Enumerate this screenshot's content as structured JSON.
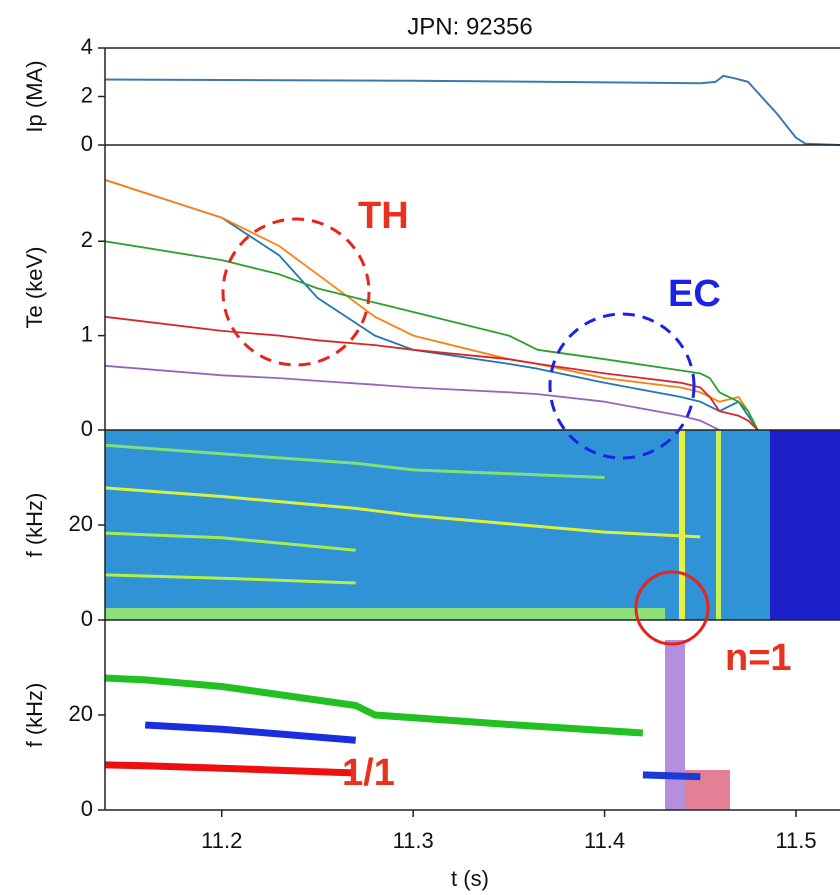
{
  "chart_data": [
    {
      "type": "line",
      "title": "JPN: 92356",
      "ylabel": "Ip (MA)",
      "x": [
        11.139,
        11.3,
        11.45,
        11.458,
        11.462,
        11.468,
        11.475,
        11.49,
        11.5,
        11.505,
        11.523
      ],
      "xlim": [
        11.139,
        11.523
      ],
      "ylim": [
        0,
        4
      ],
      "yticks": [
        0,
        2,
        4
      ],
      "series": [
        {
          "color": "#3f78b0",
          "values": [
            2.7,
            2.65,
            2.55,
            2.6,
            2.85,
            2.75,
            2.6,
            1.3,
            0.3,
            0.05,
            0
          ]
        }
      ]
    },
    {
      "type": "line",
      "ylabel": "Te (keV)",
      "annotations": [
        "TH",
        "EC"
      ],
      "x": [
        11.139,
        11.2,
        11.23,
        11.25,
        11.28,
        11.3,
        11.35,
        11.365,
        11.4,
        11.44,
        11.45,
        11.455,
        11.46,
        11.47,
        11.475,
        11.48
      ],
      "xlim": [
        11.139,
        11.523
      ],
      "ylim": [
        0,
        3.02
      ],
      "yticks": [
        0,
        1,
        2
      ],
      "series": [
        {
          "color": "#1f77b4",
          "values": [
            2.65,
            2.25,
            1.85,
            1.4,
            1.0,
            0.85,
            0.7,
            0.65,
            0.5,
            0.35,
            0.3,
            0.25,
            0.2,
            0.3,
            0.15,
            0
          ]
        },
        {
          "color": "#ff7f0e",
          "values": [
            2.65,
            2.25,
            1.95,
            1.65,
            1.2,
            1.0,
            0.75,
            0.7,
            0.55,
            0.45,
            0.4,
            0.35,
            0.3,
            0.35,
            0.2,
            0
          ]
        },
        {
          "color": "#2ca02c",
          "values": [
            2.0,
            1.8,
            1.65,
            1.5,
            1.35,
            1.25,
            1.0,
            0.85,
            0.75,
            0.63,
            0.6,
            0.55,
            0.4,
            0.3,
            0.2,
            0
          ]
        },
        {
          "color": "#d62728",
          "values": [
            1.2,
            1.05,
            1.0,
            0.95,
            0.9,
            0.85,
            0.75,
            0.7,
            0.6,
            0.5,
            0.45,
            0.35,
            0.2,
            0.15,
            0.1,
            0
          ]
        },
        {
          "color": "#9467bd",
          "values": [
            0.68,
            0.58,
            0.55,
            0.52,
            0.48,
            0.45,
            0.4,
            0.38,
            0.3,
            0.15,
            0.1,
            0.05,
            0,
            null,
            null,
            null
          ]
        }
      ]
    },
    {
      "type": "line",
      "ylabel": "f (kHz)",
      "x": [
        11.139,
        11.2,
        11.27,
        11.3,
        11.4,
        11.45
      ],
      "xlim": [
        11.139,
        11.523
      ],
      "ylim": [
        0,
        40
      ],
      "yticks": [
        0,
        20
      ],
      "series": [
        {
          "color": "#7fe07a",
          "values": [
            36.8,
            35,
            33,
            31.6,
            30,
            null
          ]
        },
        {
          "color": "#d8f040",
          "values": [
            27.8,
            26,
            23.5,
            22,
            18.5,
            17.5
          ]
        },
        {
          "color": "#a6ec50",
          "values": [
            18.3,
            17.3,
            14.7,
            null,
            null,
            null
          ]
        },
        {
          "color": "#b4f048",
          "values": [
            9.5,
            8.8,
            7.8,
            null,
            null,
            null
          ]
        }
      ]
    },
    {
      "type": "line",
      "ylabel": "f (kHz)",
      "xlabel": "t (s)",
      "annotations": [
        "1/1",
        "n=1"
      ],
      "x": [
        11.139,
        11.16,
        11.2,
        11.27,
        11.28,
        11.35,
        11.42,
        11.45
      ],
      "xlim": [
        11.139,
        11.523
      ],
      "ylim": [
        0,
        40
      ],
      "yticks": [
        0,
        20
      ],
      "xticks": [
        11.2,
        11.3,
        11.4,
        11.5
      ],
      "series": [
        {
          "color": "#22c022",
          "values": [
            27.8,
            27.4,
            26,
            22,
            20,
            18,
            16.2,
            null
          ]
        },
        {
          "color": "#1a2ee0",
          "values": [
            null,
            17.9,
            17,
            14.7,
            null,
            null,
            null,
            null
          ]
        },
        {
          "color": "#ee1010",
          "values": [
            9.5,
            9.3,
            8.8,
            7.8,
            null,
            null,
            null,
            null
          ]
        },
        {
          "color": "#1a3ad8",
          "values": [
            null,
            null,
            null,
            null,
            null,
            null,
            7.4,
            7.0
          ]
        }
      ]
    }
  ]
}
